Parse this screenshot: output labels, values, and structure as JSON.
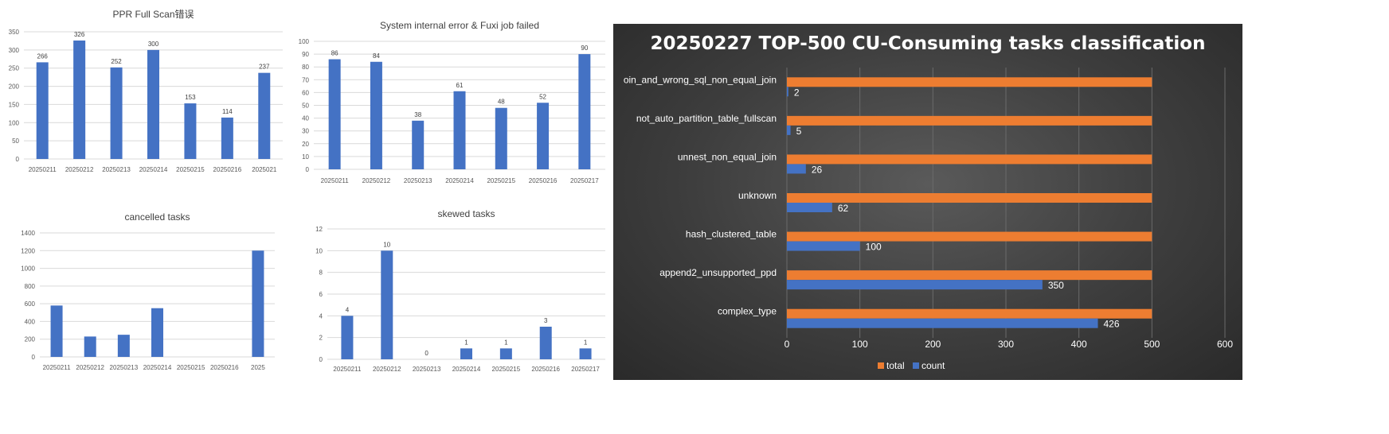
{
  "colors": {
    "bar_blue": "#4472c4",
    "bar_orange": "#ed7d31",
    "grid_light": "#d9d9d9",
    "axis_text": "#595959",
    "dark_text": "#ffffff"
  },
  "chart_data": [
    {
      "type": "bar",
      "title": "PPR Full Scan错误",
      "categories": [
        "20250211",
        "20250212",
        "20250213",
        "20250214",
        "20250215",
        "20250216",
        "2025021"
      ],
      "values": [
        266,
        326,
        252,
        300,
        153,
        114,
        237
      ],
      "ylim": [
        0,
        350
      ],
      "yticks": [
        0,
        50,
        100,
        150,
        200,
        250,
        300,
        350
      ],
      "grid": true
    },
    {
      "type": "bar",
      "title": "System internal error & Fuxi job failed",
      "categories": [
        "20250211",
        "20250212",
        "20250213",
        "20250214",
        "20250215",
        "20250216",
        "20250217"
      ],
      "values": [
        86,
        84,
        38,
        61,
        48,
        52,
        90
      ],
      "ylim": [
        0,
        100
      ],
      "yticks": [
        0,
        10,
        20,
        30,
        40,
        50,
        60,
        70,
        80,
        90,
        100
      ],
      "grid": true
    },
    {
      "type": "bar",
      "title": "cancelled tasks",
      "categories": [
        "20250211",
        "20250212",
        "20250213",
        "20250214",
        "20250215",
        "20250216",
        "2025"
      ],
      "values": [
        580,
        230,
        250,
        550,
        0,
        0,
        1200
      ],
      "ylim": [
        0,
        1400
      ],
      "yticks": [
        0,
        200,
        400,
        600,
        800,
        1000,
        1200,
        1400
      ],
      "grid": true
    },
    {
      "type": "bar",
      "title": "skewed tasks",
      "categories": [
        "20250211",
        "20250212",
        "20250213",
        "20250214",
        "20250215",
        "20250216",
        "20250217"
      ],
      "values": [
        4,
        10,
        0,
        1,
        1,
        3,
        1
      ],
      "ylim": [
        0,
        12
      ],
      "yticks": [
        0,
        2,
        4,
        6,
        8,
        10,
        12
      ],
      "grid": true
    },
    {
      "type": "bar",
      "orientation": "horizontal",
      "title": "20250227 TOP-500 CU-Consuming tasks classification",
      "categories": [
        "oin_and_wrong_sql_non_equal_join",
        "not_auto_partition_table_fullscan",
        "unnest_non_equal_join",
        "unknown",
        "hash_clustered_table",
        "append2_unsupported_ppd",
        "complex_type"
      ],
      "series": [
        {
          "name": "total",
          "values": [
            500,
            500,
            500,
            500,
            500,
            500,
            500
          ]
        },
        {
          "name": "count",
          "values": [
            2,
            5,
            26,
            62,
            100,
            350,
            426
          ]
        }
      ],
      "xlim": [
        0,
        600
      ],
      "xticks": [
        0,
        100,
        200,
        300,
        400,
        500,
        600
      ],
      "grid": true,
      "legend": "bottom"
    }
  ]
}
